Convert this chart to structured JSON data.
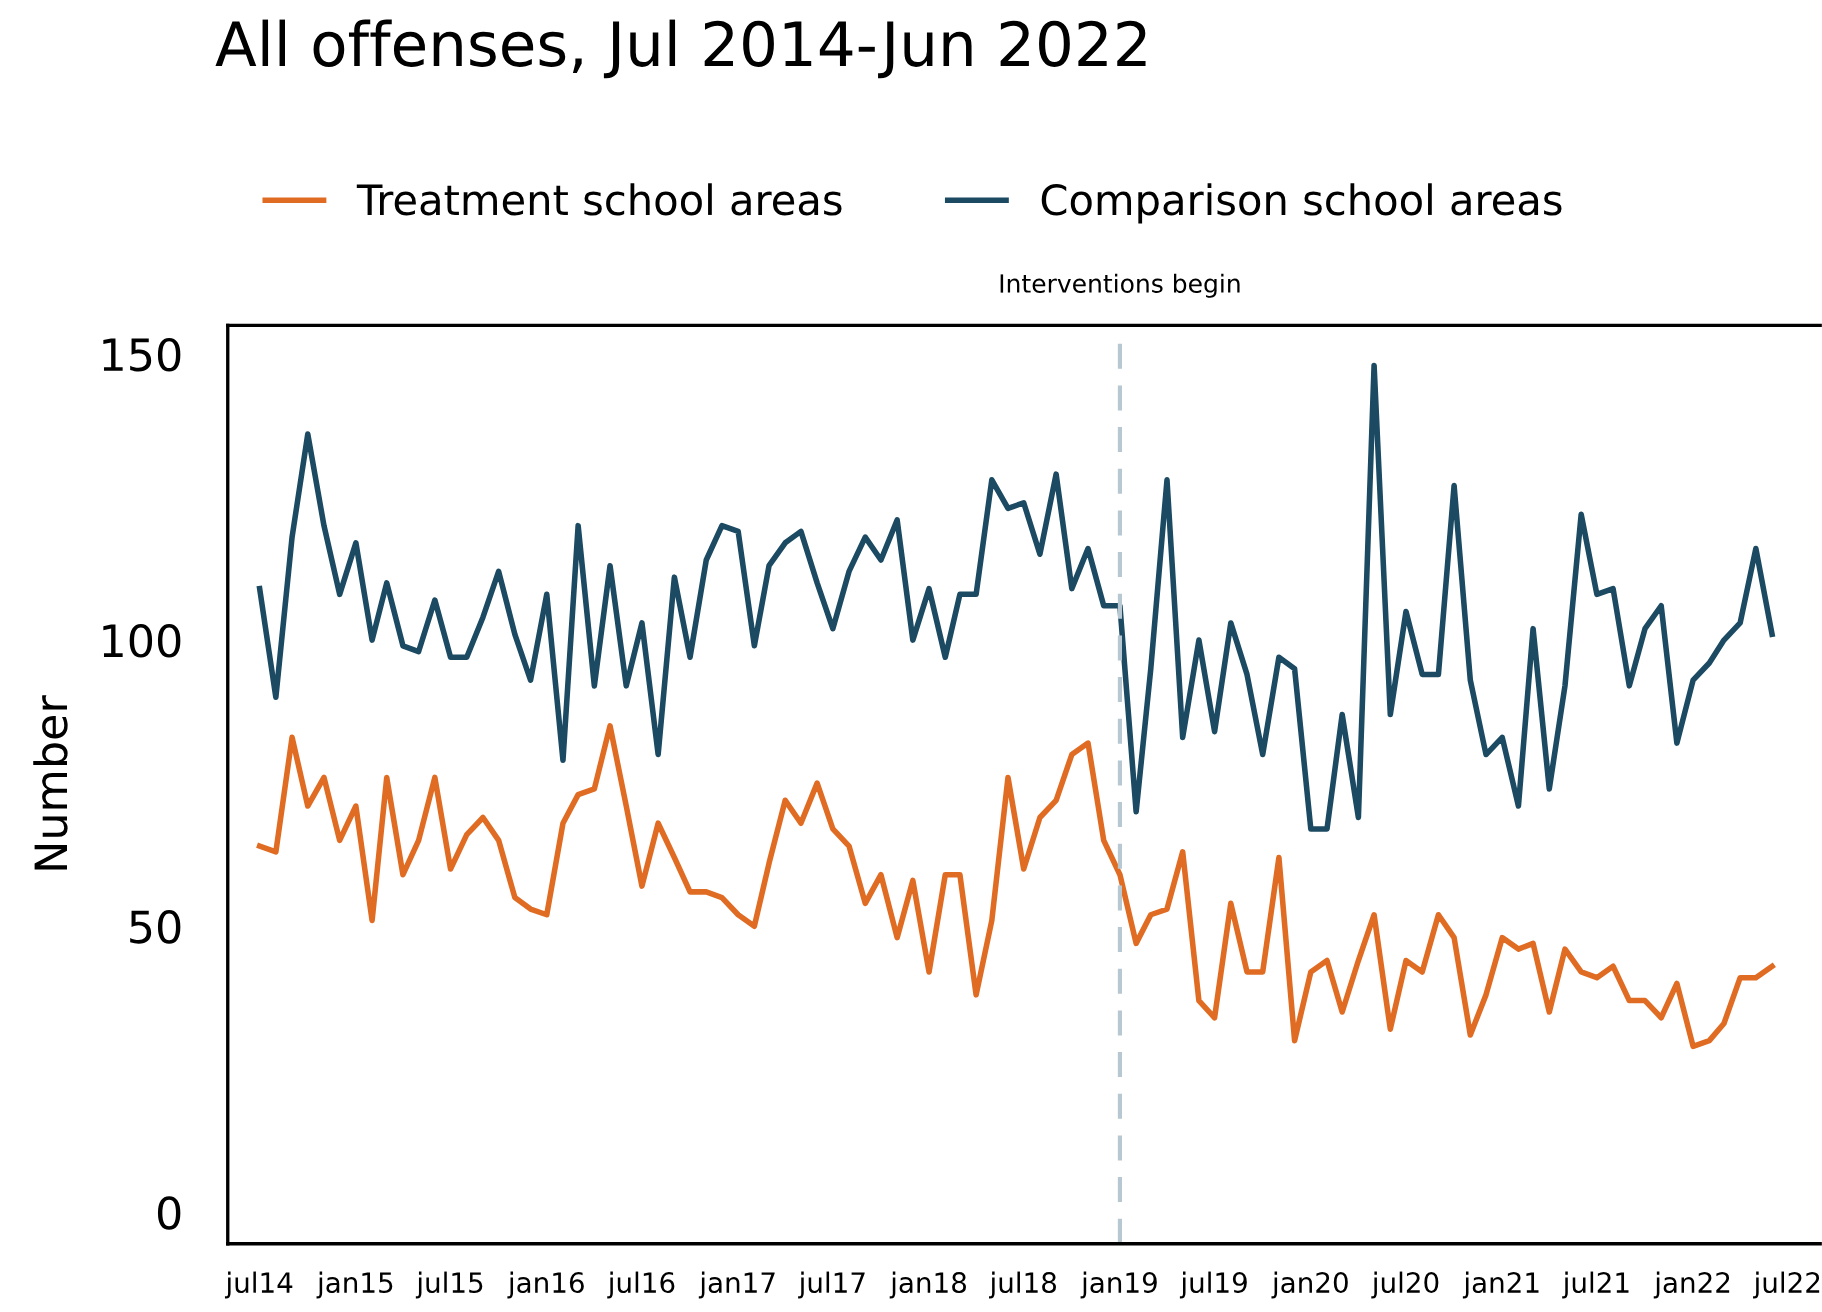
{
  "chart_data": {
    "type": "line",
    "title": "All offenses, Jul 2014-Jun 2022",
    "ylabel": "Number",
    "x": [
      "2014-07",
      "2014-08",
      "2014-09",
      "2014-10",
      "2014-11",
      "2014-12",
      "2015-01",
      "2015-02",
      "2015-03",
      "2015-04",
      "2015-05",
      "2015-06",
      "2015-07",
      "2015-08",
      "2015-09",
      "2015-10",
      "2015-11",
      "2015-12",
      "2016-01",
      "2016-02",
      "2016-03",
      "2016-04",
      "2016-05",
      "2016-06",
      "2016-07",
      "2016-08",
      "2016-09",
      "2016-10",
      "2016-11",
      "2016-12",
      "2017-01",
      "2017-02",
      "2017-03",
      "2017-04",
      "2017-05",
      "2017-06",
      "2017-07",
      "2017-08",
      "2017-09",
      "2017-10",
      "2017-11",
      "2017-12",
      "2018-01",
      "2018-02",
      "2018-03",
      "2018-04",
      "2018-05",
      "2018-06",
      "2018-07",
      "2018-08",
      "2018-09",
      "2018-10",
      "2018-11",
      "2018-12",
      "2019-01",
      "2019-02",
      "2019-03",
      "2019-04",
      "2019-05",
      "2019-06",
      "2019-07",
      "2019-08",
      "2019-09",
      "2019-10",
      "2019-11",
      "2019-12",
      "2020-01",
      "2020-02",
      "2020-03",
      "2020-04",
      "2020-05",
      "2020-06",
      "2020-07",
      "2020-08",
      "2020-09",
      "2020-10",
      "2020-11",
      "2020-12",
      "2021-01",
      "2021-02",
      "2021-03",
      "2021-04",
      "2021-05",
      "2021-06",
      "2021-07",
      "2021-08",
      "2021-09",
      "2021-10",
      "2021-11",
      "2021-12",
      "2022-01",
      "2022-02",
      "2022-03",
      "2022-04",
      "2022-05",
      "2022-06"
    ],
    "series": [
      {
        "name": "Treatment school areas",
        "color": "#e06c23",
        "values": [
          64,
          63,
          83,
          71,
          76,
          65,
          71,
          51,
          76,
          59,
          65,
          76,
          60,
          66,
          69,
          65,
          55,
          53,
          52,
          68,
          73,
          74,
          85,
          71,
          57,
          68,
          62,
          56,
          56,
          55,
          52,
          50,
          61,
          72,
          68,
          75,
          67,
          64,
          54,
          59,
          48,
          58,
          42,
          59,
          59,
          38,
          51,
          76,
          60,
          69,
          72,
          80,
          82,
          65,
          59,
          47,
          52,
          53,
          63,
          37,
          34,
          54,
          42,
          42,
          62,
          30,
          42,
          44,
          35,
          44,
          52,
          32,
          44,
          42,
          52,
          48,
          31,
          38,
          48,
          46,
          47,
          35,
          46,
          42,
          41,
          43,
          37,
          37,
          34,
          40,
          29,
          30,
          33,
          41,
          41,
          43
        ]
      },
      {
        "name": "Comparison school areas",
        "color": "#1b4a62",
        "values": [
          109,
          90,
          118,
          136,
          120,
          108,
          117,
          100,
          110,
          99,
          98,
          107,
          97,
          97,
          104,
          112,
          101,
          93,
          108,
          79,
          120,
          92,
          113,
          92,
          103,
          80,
          111,
          97,
          114,
          120,
          119,
          99,
          113,
          117,
          119,
          110,
          102,
          112,
          118,
          114,
          121,
          100,
          109,
          97,
          108,
          108,
          128,
          123,
          124,
          115,
          129,
          109,
          116,
          106,
          106,
          70,
          95,
          128,
          83,
          100,
          84,
          103,
          94,
          80,
          97,
          95,
          67,
          67,
          87,
          69,
          148,
          87,
          105,
          94,
          94,
          127,
          93,
          80,
          83,
          71,
          102,
          74,
          92,
          122,
          108,
          109,
          92,
          102,
          106,
          82,
          93,
          96,
          100,
          103,
          116,
          101
        ]
      }
    ],
    "xlim": [
      "2014-05",
      "2022-09"
    ],
    "xticks": [
      {
        "value": "2014-07",
        "label": "jul14"
      },
      {
        "value": "2015-01",
        "label": "jan15"
      },
      {
        "value": "2015-07",
        "label": "jul15"
      },
      {
        "value": "2016-01",
        "label": "jan16"
      },
      {
        "value": "2016-07",
        "label": "jul16"
      },
      {
        "value": "2017-01",
        "label": "jan17"
      },
      {
        "value": "2017-07",
        "label": "jul17"
      },
      {
        "value": "2018-01",
        "label": "jan18"
      },
      {
        "value": "2018-07",
        "label": "jul18"
      },
      {
        "value": "2019-01",
        "label": "jan19"
      },
      {
        "value": "2019-07",
        "label": "jul19"
      },
      {
        "value": "2020-01",
        "label": "jan20"
      },
      {
        "value": "2020-07",
        "label": "jul20"
      },
      {
        "value": "2021-01",
        "label": "jan21"
      },
      {
        "value": "2021-07",
        "label": "jul21"
      },
      {
        "value": "2022-01",
        "label": "jan22"
      },
      {
        "value": "2022-07",
        "label": "jul22"
      }
    ],
    "ylim": [
      -5.5,
      155
    ],
    "yticks": [
      0,
      50,
      100,
      150
    ],
    "ref_lines": [
      {
        "axis": "x",
        "value": "2019-01",
        "label": "Interventions begin",
        "color": "#b8c8d2",
        "line_style": "dashed"
      }
    ],
    "grid": false,
    "legend": "top left",
    "marker": "none",
    "line_style": "solid"
  }
}
